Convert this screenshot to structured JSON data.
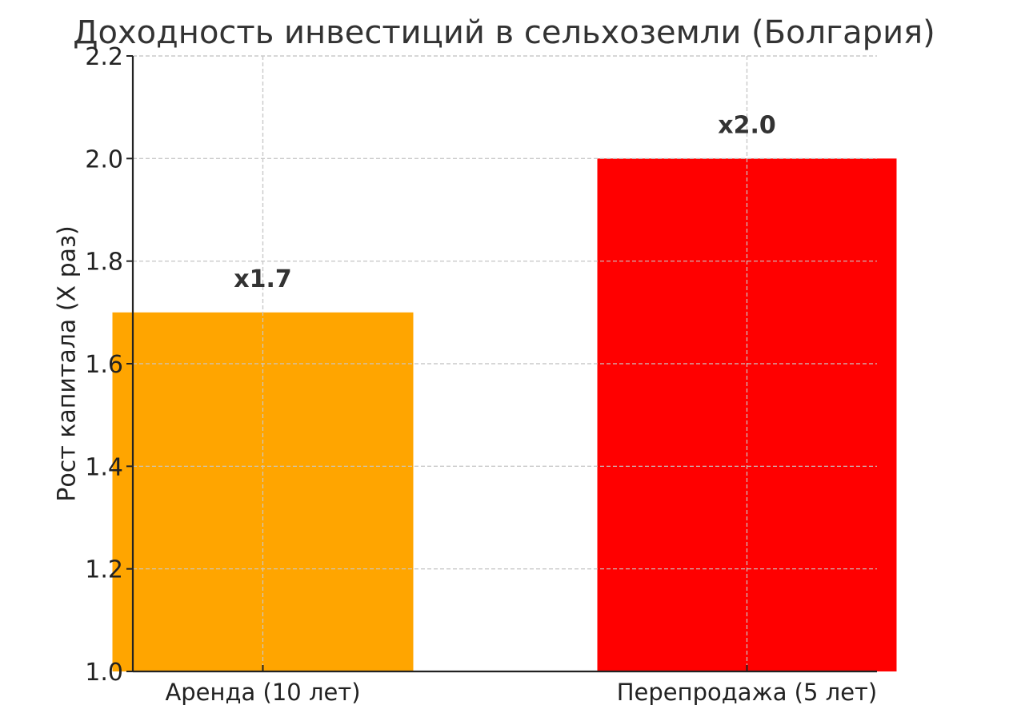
{
  "chart_data": {
    "type": "bar",
    "title": "Доходность инвестиций в сельхоземли (Болгария)",
    "xlabel": "",
    "ylabel": "Рост капитала (X раз)",
    "categories": [
      "Аренда (10 лет)",
      "Перепродажа (5 лет)"
    ],
    "values": [
      1.7,
      2.0
    ],
    "data_labels": [
      "x1.7",
      "x2.0"
    ],
    "colors": [
      "#FFA500",
      "#FF0000"
    ],
    "ylim": [
      1.0,
      2.2
    ],
    "yticks": [
      1.0,
      1.2,
      1.4,
      1.6,
      1.8,
      2.0,
      2.2
    ],
    "ytick_labels": [
      "1.0",
      "1.2",
      "1.4",
      "1.6",
      "1.8",
      "2.0",
      "2.2"
    ],
    "grid": true,
    "legend": "none"
  }
}
